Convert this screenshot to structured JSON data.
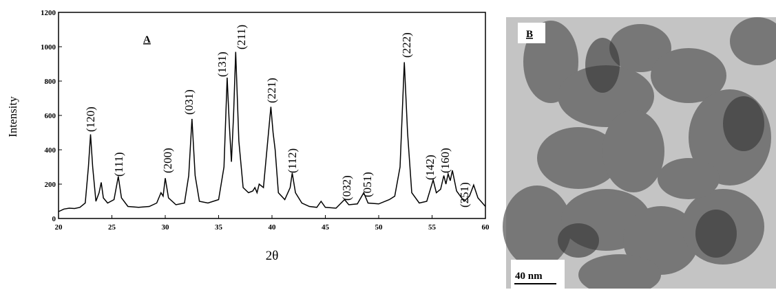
{
  "chart_data": {
    "type": "line",
    "panel_label": "A",
    "x_label": "2θ",
    "y_label": "Intensity",
    "color": "#000000",
    "xlim": [
      20,
      60
    ],
    "ylim": [
      0,
      1200
    ],
    "xticks": [
      20,
      25,
      30,
      35,
      40,
      45,
      50,
      55,
      60
    ],
    "yticks": [
      0,
      200,
      400,
      600,
      800,
      1000,
      1200
    ],
    "x": [
      20,
      20.5,
      21,
      21.5,
      22,
      22.5,
      22.8,
      23.0,
      23.2,
      23.5,
      23.8,
      24.0,
      24.2,
      24.6,
      25.2,
      25.6,
      25.9,
      26.5,
      27.5,
      28.5,
      29.2,
      29.6,
      29.8,
      30.0,
      30.3,
      31,
      31.8,
      32.2,
      32.5,
      32.8,
      33.2,
      34,
      35,
      35.5,
      35.8,
      36.0,
      36.2,
      36.4,
      36.6,
      36.9,
      37.3,
      37.8,
      38.2,
      38.4,
      38.6,
      38.8,
      39.2,
      39.6,
      39.9,
      40.1,
      40.3,
      40.6,
      41.2,
      41.7,
      41.9,
      42.2,
      42.8,
      43.5,
      44.2,
      44.6,
      45.0,
      46,
      46.8,
      47.2,
      48,
      48.6,
      49,
      50,
      51,
      51.5,
      52,
      52.4,
      52.7,
      53.1,
      53.8,
      54.5,
      55.1,
      55.4,
      55.8,
      56.1,
      56.3,
      56.5,
      56.7,
      56.9,
      57.3,
      58,
      58.5,
      58.9,
      59.3,
      60
    ],
    "values": [
      40,
      55,
      60,
      58,
      65,
      90,
      300,
      490,
      300,
      100,
      150,
      210,
      120,
      90,
      110,
      245,
      120,
      70,
      65,
      70,
      90,
      150,
      130,
      235,
      120,
      80,
      90,
      250,
      580,
      250,
      100,
      90,
      110,
      300,
      820,
      550,
      330,
      600,
      970,
      450,
      180,
      150,
      160,
      180,
      150,
      200,
      180,
      450,
      650,
      500,
      400,
      150,
      110,
      180,
      265,
      150,
      90,
      70,
      65,
      100,
      65,
      60,
      110,
      80,
      85,
      150,
      90,
      85,
      110,
      130,
      300,
      910,
      500,
      150,
      90,
      100,
      225,
      150,
      170,
      250,
      200,
      260,
      220,
      280,
      160,
      100,
      130,
      195,
      120,
      70
    ],
    "annotations": [
      "(120)",
      "(111)",
      "(200)",
      "(031)",
      "(131)",
      "(211)",
      "(221)",
      "(112)",
      "(032)",
      "(051)",
      "(222)",
      "(142)",
      "(160)",
      "(251)"
    ]
  },
  "image_panel": {
    "label": "B",
    "scale_bar": "40 nm"
  }
}
